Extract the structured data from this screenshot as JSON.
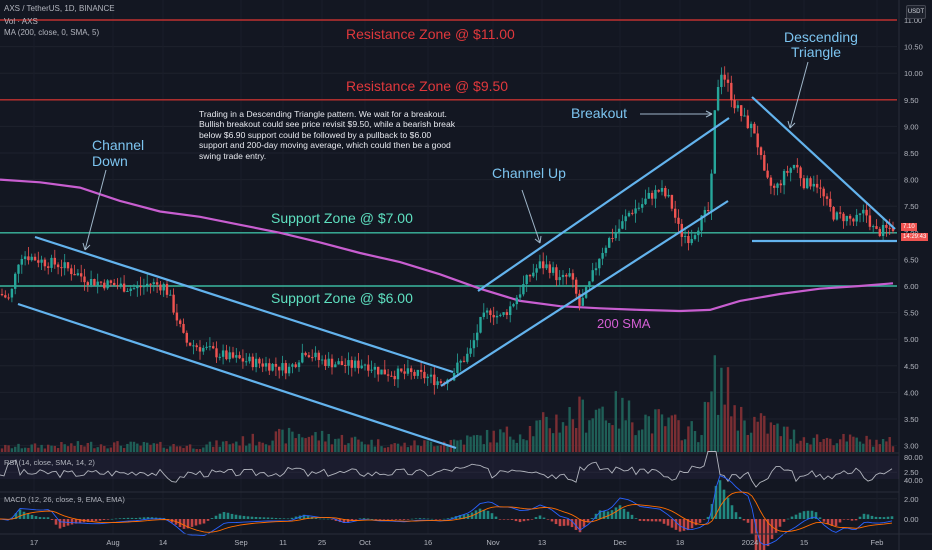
{
  "header": {
    "symbol_line": "AXS / TetherUS, 1D, BINANCE",
    "vol_line": "Vol · AXS",
    "ma_line": "MA (200, close, 0, SMA, 5)",
    "currency_badge": "USDT"
  },
  "annotations": {
    "resistance_11": "Resistance Zone @ $11.00",
    "resistance_950": "Resistance Zone @ $9.50",
    "support_7": "Support Zone @ $7.00",
    "support_6": "Support Zone @ $6.00",
    "channel_down_1": "Channel",
    "channel_down_2": "Down",
    "channel_up": "Channel Up",
    "breakout": "Breakout",
    "descending_1": "Descending",
    "descending_2": "Triangle",
    "sma_label": "200 SMA",
    "note": "Trading in a Descending Triangle pattern. We wait for a breakout. Bullish breakout could see price revisit $9.50, while a bearish break below $6.90 support could be followed by a pullback to $6.00 support and 200-day moving average, which could then be a good swing trade entry."
  },
  "rsi": {
    "label": "RSI (14, close, SMA, 14, 2)",
    "ticks": [
      "80.00",
      "40.00"
    ]
  },
  "macd": {
    "label": "MACD (12, 26, close, 9, EMA, EMA)",
    "ticks": [
      "0.00"
    ]
  },
  "price_tags": {
    "last": "7.10",
    "countdown": "14:29:43"
  },
  "chart_data": {
    "type": "candlestick",
    "y_ticks": [
      "11.00",
      "10.50",
      "10.00",
      "9.50",
      "9.00",
      "8.50",
      "8.00",
      "7.50",
      "7.00",
      "6.50",
      "6.00",
      "5.50",
      "5.00",
      "4.50",
      "4.00",
      "3.50",
      "3.00",
      "2.50",
      "2.00"
    ],
    "ylim": [
      1.95,
      11.1
    ],
    "x_ticks": [
      "17",
      "Aug",
      "14",
      "Sep",
      "11",
      "25",
      "Oct",
      "16",
      "Nov",
      "13",
      "Dec",
      "18",
      "2024",
      "15",
      "Feb"
    ],
    "levels": {
      "resistance": [
        11.0,
        9.5
      ],
      "support": [
        7.0,
        6.0
      ]
    },
    "close_path": [
      [
        0,
        5.85
      ],
      [
        10,
        5.75
      ],
      [
        20,
        6.6
      ],
      [
        30,
        6.55
      ],
      [
        45,
        6.45
      ],
      [
        60,
        6.4
      ],
      [
        75,
        6.25
      ],
      [
        90,
        6.1
      ],
      [
        105,
        6.05
      ],
      [
        120,
        6.0
      ],
      [
        135,
        5.95
      ],
      [
        150,
        6.05
      ],
      [
        165,
        6.0
      ],
      [
        175,
        5.5
      ],
      [
        185,
        4.95
      ],
      [
        200,
        4.85
      ],
      [
        215,
        4.75
      ],
      [
        230,
        4.65
      ],
      [
        245,
        4.6
      ],
      [
        260,
        4.55
      ],
      [
        275,
        4.5
      ],
      [
        290,
        4.45
      ],
      [
        305,
        4.8
      ],
      [
        320,
        4.6
      ],
      [
        335,
        4.55
      ],
      [
        350,
        4.5
      ],
      [
        365,
        4.55
      ],
      [
        380,
        4.4
      ],
      [
        395,
        4.35
      ],
      [
        410,
        4.35
      ],
      [
        425,
        4.3
      ],
      [
        440,
        4.2
      ],
      [
        450,
        4.3
      ],
      [
        460,
        4.55
      ],
      [
        470,
        4.75
      ],
      [
        480,
        5.3
      ],
      [
        490,
        5.55
      ],
      [
        500,
        5.4
      ],
      [
        510,
        5.6
      ],
      [
        520,
        5.9
      ],
      [
        530,
        6.2
      ],
      [
        540,
        6.4
      ],
      [
        550,
        6.35
      ],
      [
        560,
        6.1
      ],
      [
        570,
        6.2
      ],
      [
        580,
        5.6
      ],
      [
        590,
        6.05
      ],
      [
        600,
        6.6
      ],
      [
        610,
        6.9
      ],
      [
        620,
        7.1
      ],
      [
        630,
        7.4
      ],
      [
        640,
        7.5
      ],
      [
        650,
        7.7
      ],
      [
        660,
        7.8
      ],
      [
        670,
        7.6
      ],
      [
        680,
        7.0
      ],
      [
        690,
        6.9
      ],
      [
        700,
        7.2
      ],
      [
        710,
        7.45
      ],
      [
        715,
        9.3
      ],
      [
        720,
        10.1
      ],
      [
        725,
        9.9
      ],
      [
        735,
        9.4
      ],
      [
        745,
        9.1
      ],
      [
        755,
        8.9
      ],
      [
        765,
        8.0
      ],
      [
        775,
        7.8
      ],
      [
        785,
        8.1
      ],
      [
        795,
        8.3
      ],
      [
        805,
        7.9
      ],
      [
        815,
        8.0
      ],
      [
        825,
        7.6
      ],
      [
        835,
        7.3
      ],
      [
        845,
        7.3
      ],
      [
        855,
        7.2
      ],
      [
        865,
        7.4
      ],
      [
        875,
        7.0
      ],
      [
        885,
        7.05
      ],
      [
        893,
        7.1
      ]
    ],
    "sma200_path": [
      [
        0,
        8.0
      ],
      [
        40,
        7.95
      ],
      [
        80,
        7.85
      ],
      [
        120,
        7.6
      ],
      [
        160,
        7.4
      ],
      [
        200,
        7.3
      ],
      [
        240,
        7.15
      ],
      [
        280,
        7.0
      ],
      [
        320,
        6.82
      ],
      [
        360,
        6.62
      ],
      [
        400,
        6.45
      ],
      [
        440,
        6.22
      ],
      [
        480,
        5.95
      ],
      [
        520,
        5.72
      ],
      [
        560,
        5.62
      ],
      [
        600,
        5.58
      ],
      [
        640,
        5.55
      ],
      [
        680,
        5.53
      ],
      [
        710,
        5.55
      ],
      [
        740,
        5.72
      ],
      [
        780,
        5.85
      ],
      [
        820,
        5.95
      ],
      [
        860,
        6.0
      ],
      [
        893,
        6.05
      ]
    ],
    "volume_path": [
      [
        0,
        0.05
      ],
      [
        100,
        0.08
      ],
      [
        200,
        0.06
      ],
      [
        300,
        0.18
      ],
      [
        400,
        0.07
      ],
      [
        460,
        0.12
      ],
      [
        520,
        0.2
      ],
      [
        600,
        0.45
      ],
      [
        700,
        0.2
      ],
      [
        718,
        0.78
      ],
      [
        740,
        0.35
      ],
      [
        800,
        0.15
      ],
      [
        893,
        0.1
      ]
    ]
  }
}
